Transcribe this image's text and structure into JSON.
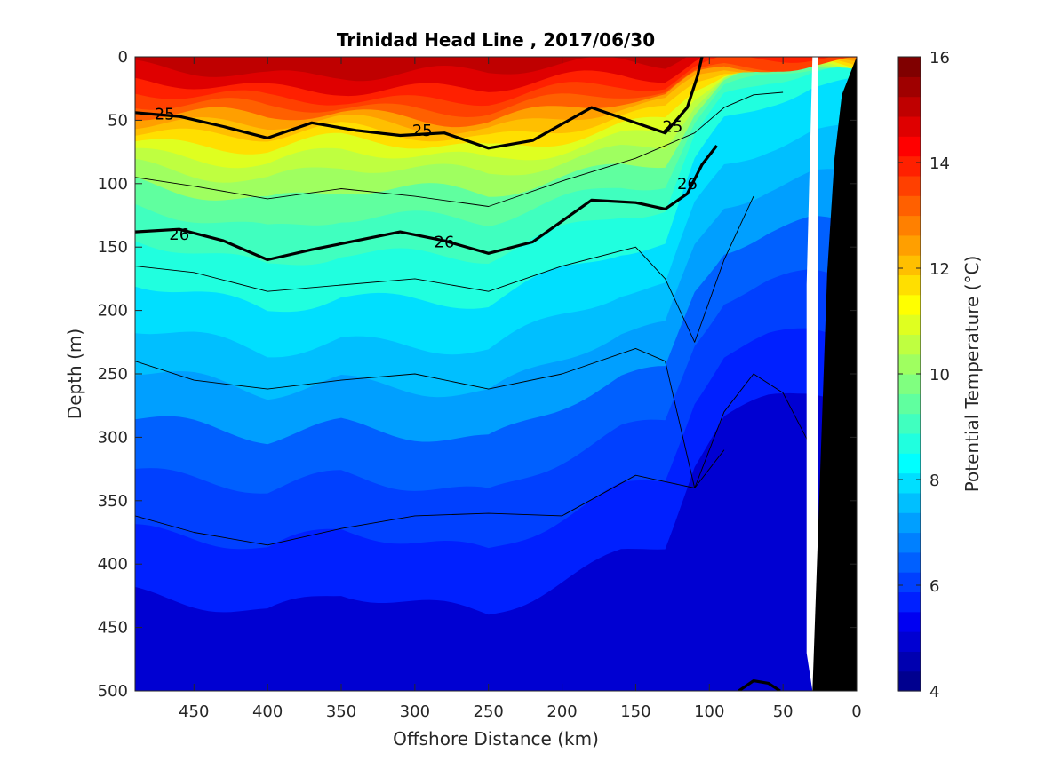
{
  "chart_data": {
    "type": "heatmap",
    "subtype": "filled contour section with density contour overlay",
    "title": "Trinidad Head Line , 2017/06/30",
    "xlabel": "Offshore Distance (km)",
    "ylabel": "Depth (m)",
    "colorbar_label": "Potential Temperature (°C)",
    "xlim": [
      490,
      0
    ],
    "ylim": [
      500,
      0
    ],
    "x_reversed": true,
    "y_reversed": true,
    "x_ticks": [
      450,
      400,
      350,
      300,
      250,
      200,
      150,
      100,
      50,
      0
    ],
    "y_ticks": [
      0,
      50,
      100,
      150,
      200,
      250,
      300,
      350,
      400,
      450,
      500
    ],
    "colorbar_ticks": [
      4,
      6,
      8,
      10,
      12,
      14,
      16
    ],
    "colorbar_range": [
      4,
      16
    ],
    "colorbar_step": 0.5,
    "colormap": [
      "#00008f",
      "#0000b0",
      "#0000d2",
      "#0000f2",
      "#0020ff",
      "#0040ff",
      "#0060ff",
      "#0080ff",
      "#009fff",
      "#00bfff",
      "#00dfff",
      "#00ffff",
      "#20ffdf",
      "#40ffbf",
      "#60ff9f",
      "#80ff80",
      "#9fff60",
      "#bfff40",
      "#dfff20",
      "#ffff00",
      "#ffdf00",
      "#ffbf00",
      "#ff9f00",
      "#ff8000",
      "#ff6000",
      "#ff4000",
      "#ff2000",
      "#ff0000",
      "#df0000",
      "#bf0000",
      "#9f0000",
      "#800000"
    ],
    "temperature_profile": {
      "depth_m": [
        0,
        10,
        20,
        30,
        40,
        50,
        60,
        70,
        80,
        90,
        100,
        120,
        140,
        160,
        180,
        200,
        230,
        260,
        300,
        350,
        400,
        450,
        500
      ],
      "temp_c": [
        15.1,
        15.0,
        14.6,
        14.0,
        13.3,
        12.5,
        11.8,
        11.2,
        10.7,
        10.3,
        10.0,
        9.5,
        9.1,
        8.8,
        8.5,
        8.2,
        7.8,
        7.3,
        6.8,
        6.2,
        5.7,
        5.2,
        4.9
      ]
    },
    "isotherm_offset_by_distance": {
      "x_km": [
        490,
        450,
        400,
        350,
        300,
        250,
        200,
        160,
        130,
        110,
        90,
        60,
        30
      ],
      "depth_shift": [
        0,
        6,
        14,
        4,
        8,
        12,
        -6,
        -20,
        -24,
        -70,
        -95,
        -105,
        -112
      ]
    },
    "density_contours": [
      {
        "label": "25",
        "bold": true,
        "x_km": [
          490,
          460,
          430,
          400,
          370,
          340,
          310,
          280,
          250,
          220,
          180,
          150,
          130,
          115,
          108,
          105
        ],
        "depth_m": [
          44,
          47,
          55,
          64,
          52,
          58,
          62,
          60,
          72,
          66,
          40,
          52,
          60,
          40,
          15,
          0
        ]
      },
      {
        "label": "26",
        "bold": true,
        "x_km": [
          490,
          460,
          430,
          400,
          370,
          340,
          310,
          280,
          250,
          220,
          180,
          150,
          130,
          115,
          105,
          95
        ],
        "depth_m": [
          138,
          136,
          145,
          160,
          152,
          145,
          138,
          145,
          155,
          146,
          113,
          115,
          120,
          108,
          85,
          70
        ]
      },
      {
        "label": "",
        "bold": false,
        "x_km": [
          490,
          450,
          400,
          350,
          300,
          250,
          200,
          150,
          110,
          90,
          70,
          50
        ],
        "depth_m": [
          95,
          102,
          112,
          104,
          110,
          118,
          98,
          80,
          60,
          40,
          30,
          28
        ]
      },
      {
        "label": "",
        "bold": false,
        "x_km": [
          490,
          450,
          400,
          350,
          300,
          250,
          200,
          150,
          130,
          110,
          90,
          70
        ],
        "depth_m": [
          165,
          170,
          185,
          180,
          175,
          185,
          165,
          150,
          175,
          225,
          160,
          110
        ]
      },
      {
        "label": "",
        "bold": false,
        "x_km": [
          490,
          450,
          400,
          350,
          300,
          250,
          200,
          150,
          130,
          110,
          90,
          70,
          50,
          30
        ],
        "depth_m": [
          240,
          255,
          262,
          255,
          250,
          262,
          250,
          230,
          240,
          340,
          280,
          250,
          265,
          310
        ]
      },
      {
        "label": "",
        "bold": false,
        "x_km": [
          490,
          450,
          400,
          350,
          300,
          250,
          200,
          150,
          130,
          110,
          90
        ],
        "depth_m": [
          362,
          375,
          385,
          372,
          362,
          360,
          362,
          330,
          335,
          340,
          310
        ]
      },
      {
        "label": "",
        "bold": true,
        "x_km": [
          80,
          70,
          60,
          52
        ],
        "depth_m": [
          500,
          492,
          494,
          500
        ]
      }
    ],
    "contour_labels": [
      {
        "text": "25",
        "x_km": 470,
        "depth_m": 45
      },
      {
        "text": "25",
        "x_km": 295,
        "depth_m": 58
      },
      {
        "text": "25",
        "x_km": 125,
        "depth_m": 55
      },
      {
        "text": "26",
        "x_km": 460,
        "depth_m": 140
      },
      {
        "text": "26",
        "x_km": 280,
        "depth_m": 146
      },
      {
        "text": "26",
        "x_km": 115,
        "depth_m": 100
      }
    ],
    "bathymetry": {
      "x_km": [
        30,
        20,
        15,
        10,
        0
      ],
      "depth_m": [
        500,
        170,
        80,
        30,
        0
      ],
      "color": "#000000"
    },
    "no_data_region": {
      "x_km": [
        26,
        30,
        34,
        34,
        30,
        26
      ],
      "depth_m": [
        0,
        0,
        180,
        470,
        500,
        500
      ],
      "color": "#ffffff"
    },
    "grid": false
  }
}
